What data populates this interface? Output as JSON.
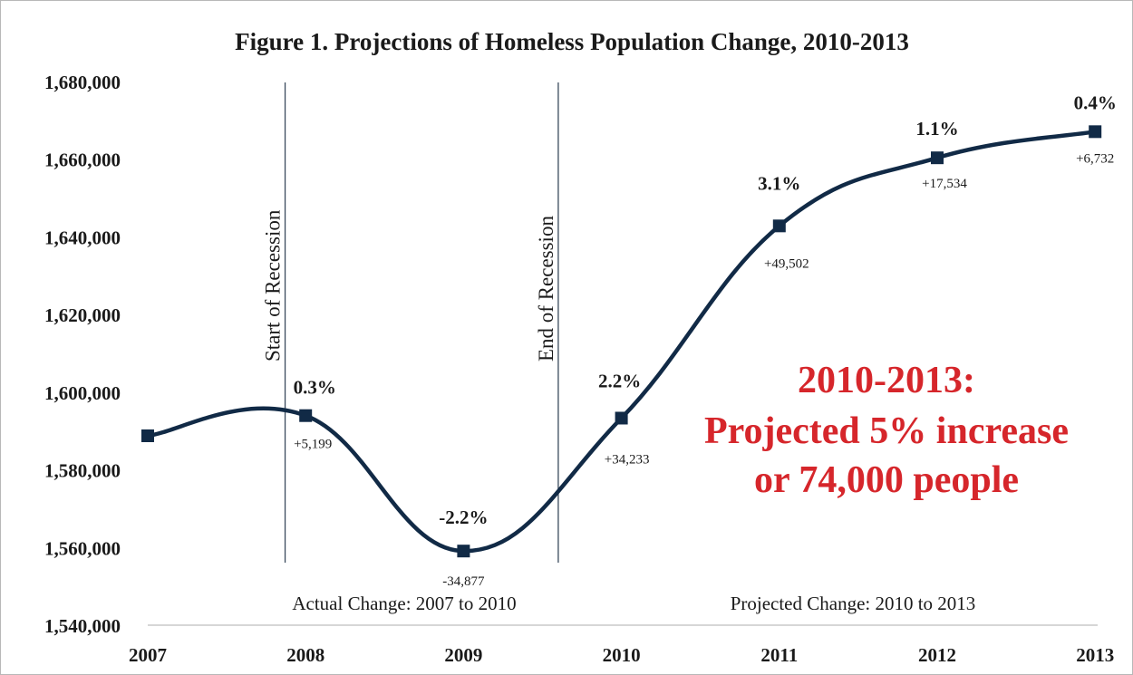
{
  "chart_data": {
    "type": "line",
    "title": "Figure 1. Projections of Homeless Population Change, 2010-2013",
    "xlabel": "",
    "ylabel": "",
    "x": [
      "2007",
      "2008",
      "2009",
      "2010",
      "2011",
      "2012",
      "2013"
    ],
    "ylim": [
      1540000,
      1680000
    ],
    "ytick_labels": [
      "1,540,000",
      "1,560,000",
      "1,580,000",
      "1,600,000",
      "1,620,000",
      "1,640,000",
      "1,660,000",
      "1,680,000"
    ],
    "series": [
      {
        "values": [
          1589000,
          1594199,
          1559322,
          1593555,
          1643057,
          1660591,
          1667323
        ],
        "percent_labels": [
          "",
          "0.3%",
          "-2.2%",
          "2.2%",
          "3.1%",
          "1.1%",
          "0.4%"
        ],
        "change_labels": [
          "",
          "+5,199",
          "-34,877",
          "+34,233",
          "+49,502",
          "+17,534",
          "+6,732"
        ]
      }
    ],
    "vertical_markers": [
      {
        "x_position": 0.87,
        "label": "Start of Recession"
      },
      {
        "x_position": 2.6,
        "label": "End of Recession"
      }
    ],
    "period_labels": {
      "actual": "Actual Change: 2007 to 2010",
      "projected": "Projected Change: 2010 to 2013"
    },
    "callout": [
      "2010-2013:",
      "Projected 5% increase",
      "or 74,000 people"
    ],
    "grid": false,
    "legend": "none",
    "colors": {
      "line": "#112a46",
      "callout": "#d6262b"
    }
  }
}
